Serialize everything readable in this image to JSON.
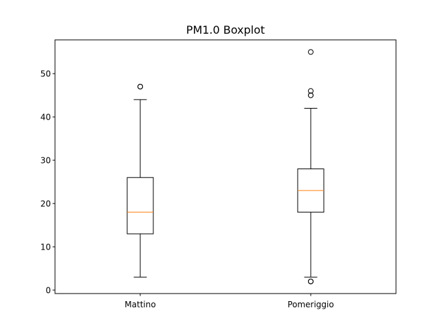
{
  "chart_data": {
    "type": "boxplot",
    "title": "PM1.0 Boxplot",
    "xlabel": "",
    "ylabel": "",
    "ylim": [
      -0.8,
      57.8
    ],
    "yticks": [
      0,
      10,
      20,
      30,
      40,
      50
    ],
    "grid": false,
    "categories": [
      "Mattino",
      "Pomeriggio"
    ],
    "boxes": [
      {
        "category": "Mattino",
        "whisker_low": 3,
        "q1": 13,
        "median": 18,
        "q3": 26,
        "whisker_high": 44,
        "outliers": [
          47,
          47
        ]
      },
      {
        "category": "Pomeriggio",
        "whisker_low": 3,
        "q1": 18,
        "median": 23,
        "q3": 28,
        "whisker_high": 42,
        "outliers": [
          2,
          2,
          45,
          45,
          46,
          55
        ]
      }
    ],
    "colors": {
      "box": "#000000",
      "median": "#ff7f0e",
      "whisker": "#000000",
      "outlier": "#000000"
    }
  }
}
